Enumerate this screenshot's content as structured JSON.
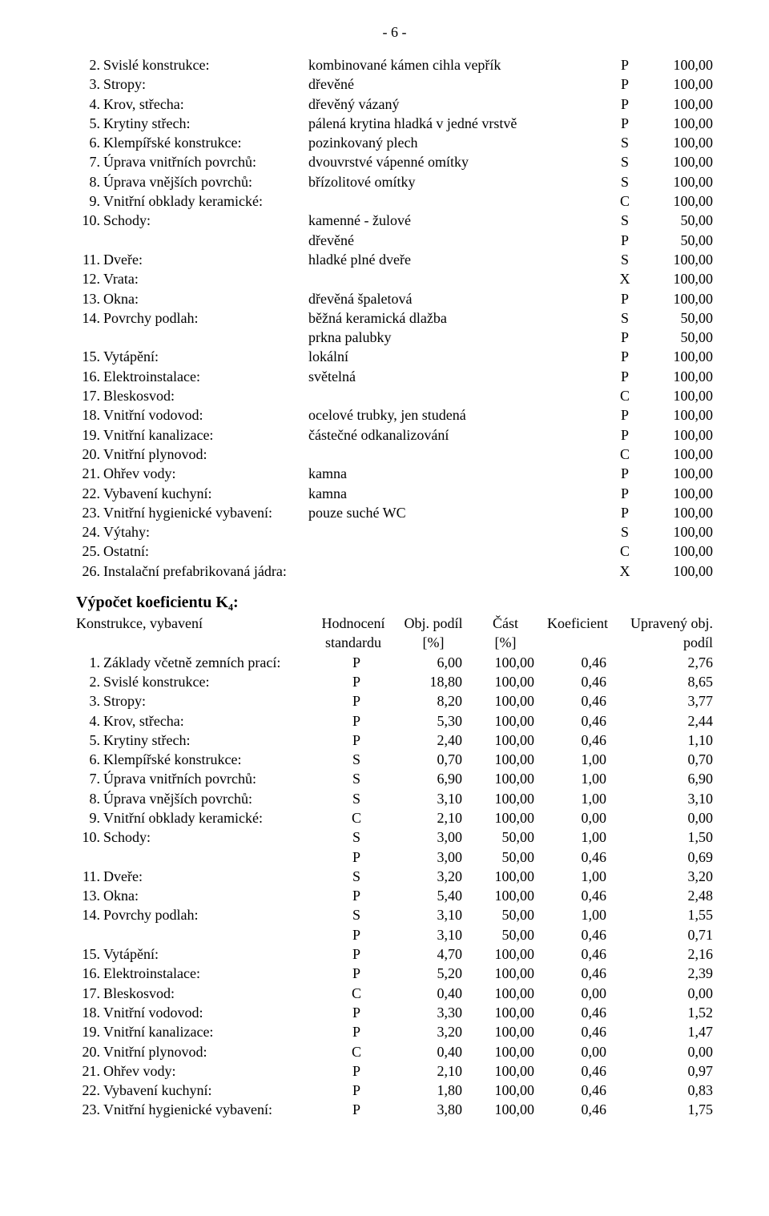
{
  "page_number": "- 6 -",
  "rows": [
    {
      "n": "2.",
      "label": "Svislé konstrukce:",
      "desc": "kombinované kámen cihla vepřík",
      "code": "P",
      "val": "100,00"
    },
    {
      "n": "3.",
      "label": "Stropy:",
      "desc": "dřevěné",
      "code": "P",
      "val": "100,00"
    },
    {
      "n": "4.",
      "label": "Krov, střecha:",
      "desc": "dřevěný vázaný",
      "code": "P",
      "val": "100,00"
    },
    {
      "n": "5.",
      "label": "Krytiny střech:",
      "desc": "pálená krytina hladká v jedné vrstvě",
      "code": "P",
      "val": "100,00"
    },
    {
      "n": "6.",
      "label": "Klempířské konstrukce:",
      "desc": "pozinkovaný plech",
      "code": "S",
      "val": "100,00"
    },
    {
      "n": "7.",
      "label": "Úprava vnitřních povrchů:",
      "desc": "dvouvrstvé vápenné omítky",
      "code": "S",
      "val": "100,00"
    },
    {
      "n": "8.",
      "label": "Úprava vnějších povrchů:",
      "desc": "břízolitové omítky",
      "code": "S",
      "val": "100,00"
    },
    {
      "n": "9.",
      "label": "Vnitřní obklady keramické:",
      "desc": "",
      "code": "C",
      "val": "100,00"
    },
    {
      "n": "10.",
      "label": "Schody:",
      "desc": "kamenné - žulové",
      "code": "S",
      "val": "50,00"
    },
    {
      "n": "",
      "label": "",
      "desc": "dřevěné",
      "code": "P",
      "val": "50,00"
    },
    {
      "n": "11.",
      "label": "Dveře:",
      "desc": "hladké plné dveře",
      "code": "S",
      "val": "100,00"
    },
    {
      "n": "12.",
      "label": "Vrata:",
      "desc": "",
      "code": "X",
      "val": "100,00"
    },
    {
      "n": "13.",
      "label": "Okna:",
      "desc": "dřevěná špaletová",
      "code": "P",
      "val": "100,00"
    },
    {
      "n": "14.",
      "label": "Povrchy podlah:",
      "desc": "běžná keramická dlažba",
      "code": "S",
      "val": "50,00"
    },
    {
      "n": "",
      "label": "",
      "desc": "prkna palubky",
      "code": "P",
      "val": "50,00"
    },
    {
      "n": "15.",
      "label": "Vytápění:",
      "desc": "lokální",
      "code": "P",
      "val": "100,00"
    },
    {
      "n": "16.",
      "label": "Elektroinstalace:",
      "desc": "světelná",
      "code": "P",
      "val": "100,00"
    },
    {
      "n": "17.",
      "label": "Bleskosvod:",
      "desc": "",
      "code": "C",
      "val": "100,00"
    },
    {
      "n": "18.",
      "label": "Vnitřní vodovod:",
      "desc": "ocelové trubky, jen studená",
      "code": "P",
      "val": "100,00"
    },
    {
      "n": "19.",
      "label": "Vnitřní kanalizace:",
      "desc": "částečné odkanalizování",
      "code": "P",
      "val": "100,00"
    },
    {
      "n": "20.",
      "label": "Vnitřní plynovod:",
      "desc": "",
      "code": "C",
      "val": "100,00"
    },
    {
      "n": "21.",
      "label": "Ohřev vody:",
      "desc": "kamna",
      "code": "P",
      "val": "100,00"
    },
    {
      "n": "22.",
      "label": "Vybavení kuchyní:",
      "desc": "kamna",
      "code": "P",
      "val": "100,00"
    },
    {
      "n": "23.",
      "label": "Vnitřní hygienické vybavení:",
      "desc": "pouze suché WC",
      "code": "P",
      "val": "100,00"
    },
    {
      "n": "24.",
      "label": "Výtahy:",
      "desc": "",
      "code": "S",
      "val": "100,00"
    },
    {
      "n": "25.",
      "label": "Ostatní:",
      "desc": "",
      "code": "C",
      "val": "100,00"
    },
    {
      "n": "26.",
      "label": "Instalační prefabrikovaná jádra:",
      "desc": "",
      "code": "X",
      "val": "100,00"
    }
  ],
  "k4": {
    "title": "Výpočet koeficientu K₄:",
    "header": {
      "c1": "Konstrukce, vybavení",
      "c2a": "Hodnocení",
      "c2b": "standardu",
      "c3a": "Obj. podíl",
      "c3b": "[%]",
      "c4a": "Část",
      "c4b": "[%]",
      "c5": "Koeficient",
      "c6a": "Upravený obj.",
      "c6b": "podíl"
    },
    "rows": [
      {
        "n": "1.",
        "label": "Základy včetně zemních prací:",
        "c2": "P",
        "c3": "6,00",
        "c4": "100,00",
        "c5": "0,46",
        "c6": "2,76"
      },
      {
        "n": "2.",
        "label": "Svislé konstrukce:",
        "c2": "P",
        "c3": "18,80",
        "c4": "100,00",
        "c5": "0,46",
        "c6": "8,65"
      },
      {
        "n": "3.",
        "label": "Stropy:",
        "c2": "P",
        "c3": "8,20",
        "c4": "100,00",
        "c5": "0,46",
        "c6": "3,77"
      },
      {
        "n": "4.",
        "label": "Krov, střecha:",
        "c2": "P",
        "c3": "5,30",
        "c4": "100,00",
        "c5": "0,46",
        "c6": "2,44"
      },
      {
        "n": "5.",
        "label": "Krytiny střech:",
        "c2": "P",
        "c3": "2,40",
        "c4": "100,00",
        "c5": "0,46",
        "c6": "1,10"
      },
      {
        "n": "6.",
        "label": "Klempířské konstrukce:",
        "c2": "S",
        "c3": "0,70",
        "c4": "100,00",
        "c5": "1,00",
        "c6": "0,70"
      },
      {
        "n": "7.",
        "label": "Úprava vnitřních povrchů:",
        "c2": "S",
        "c3": "6,90",
        "c4": "100,00",
        "c5": "1,00",
        "c6": "6,90"
      },
      {
        "n": "8.",
        "label": "Úprava vnějších povrchů:",
        "c2": "S",
        "c3": "3,10",
        "c4": "100,00",
        "c5": "1,00",
        "c6": "3,10"
      },
      {
        "n": "9.",
        "label": "Vnitřní obklady keramické:",
        "c2": "C",
        "c3": "2,10",
        "c4": "100,00",
        "c5": "0,00",
        "c6": "0,00"
      },
      {
        "n": "10.",
        "label": "Schody:",
        "c2": "S",
        "c3": "3,00",
        "c4": "50,00",
        "c5": "1,00",
        "c6": "1,50"
      },
      {
        "n": "",
        "label": "",
        "c2": "P",
        "c3": "3,00",
        "c4": "50,00",
        "c5": "0,46",
        "c6": "0,69"
      },
      {
        "n": "11.",
        "label": "Dveře:",
        "c2": "S",
        "c3": "3,20",
        "c4": "100,00",
        "c5": "1,00",
        "c6": "3,20"
      },
      {
        "n": "13.",
        "label": "Okna:",
        "c2": "P",
        "c3": "5,40",
        "c4": "100,00",
        "c5": "0,46",
        "c6": "2,48"
      },
      {
        "n": "14.",
        "label": "Povrchy podlah:",
        "c2": "S",
        "c3": "3,10",
        "c4": "50,00",
        "c5": "1,00",
        "c6": "1,55"
      },
      {
        "n": "",
        "label": "",
        "c2": "P",
        "c3": "3,10",
        "c4": "50,00",
        "c5": "0,46",
        "c6": "0,71"
      },
      {
        "n": "15.",
        "label": "Vytápění:",
        "c2": "P",
        "c3": "4,70",
        "c4": "100,00",
        "c5": "0,46",
        "c6": "2,16"
      },
      {
        "n": "16.",
        "label": "Elektroinstalace:",
        "c2": "P",
        "c3": "5,20",
        "c4": "100,00",
        "c5": "0,46",
        "c6": "2,39"
      },
      {
        "n": "17.",
        "label": "Bleskosvod:",
        "c2": "C",
        "c3": "0,40",
        "c4": "100,00",
        "c5": "0,00",
        "c6": "0,00"
      },
      {
        "n": "18.",
        "label": "Vnitřní vodovod:",
        "c2": "P",
        "c3": "3,30",
        "c4": "100,00",
        "c5": "0,46",
        "c6": "1,52"
      },
      {
        "n": "19.",
        "label": "Vnitřní kanalizace:",
        "c2": "P",
        "c3": "3,20",
        "c4": "100,00",
        "c5": "0,46",
        "c6": "1,47"
      },
      {
        "n": "20.",
        "label": "Vnitřní plynovod:",
        "c2": "C",
        "c3": "0,40",
        "c4": "100,00",
        "c5": "0,00",
        "c6": "0,00"
      },
      {
        "n": "21.",
        "label": "Ohřev vody:",
        "c2": "P",
        "c3": "2,10",
        "c4": "100,00",
        "c5": "0,46",
        "c6": "0,97"
      },
      {
        "n": "22.",
        "label": "Vybavení kuchyní:",
        "c2": "P",
        "c3": "1,80",
        "c4": "100,00",
        "c5": "0,46",
        "c6": "0,83"
      },
      {
        "n": "23.",
        "label": "Vnitřní hygienické vybavení:",
        "c2": "P",
        "c3": "3,80",
        "c4": "100,00",
        "c5": "0,46",
        "c6": "1,75"
      }
    ]
  }
}
